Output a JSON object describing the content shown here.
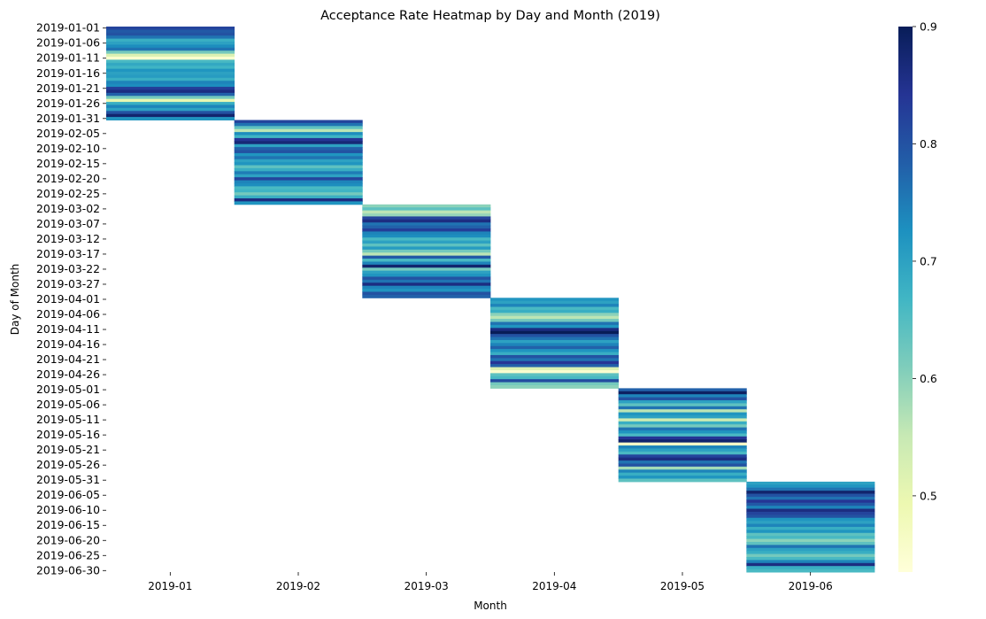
{
  "chart_data": {
    "type": "heatmap",
    "title": "Acceptance Rate Heatmap by Day and Month (2019)",
    "xlabel": "Month",
    "ylabel": "Day of Month",
    "months": [
      "2019-01",
      "2019-02",
      "2019-03",
      "2019-04",
      "2019-05",
      "2019-06"
    ],
    "days_per_month": [
      31,
      28,
      31,
      30,
      31,
      30
    ],
    "y_tick_labels": [
      "2019-01-01",
      "2019-01-06",
      "2019-01-11",
      "2019-01-16",
      "2019-01-21",
      "2019-01-26",
      "2019-01-31",
      "2019-02-05",
      "2019-02-10",
      "2019-02-15",
      "2019-02-20",
      "2019-02-25",
      "2019-03-02",
      "2019-03-07",
      "2019-03-12",
      "2019-03-17",
      "2019-03-22",
      "2019-03-27",
      "2019-04-01",
      "2019-04-06",
      "2019-04-11",
      "2019-04-16",
      "2019-04-21",
      "2019-04-26",
      "2019-05-01",
      "2019-05-06",
      "2019-05-11",
      "2019-05-16",
      "2019-05-21",
      "2019-05-26",
      "2019-05-31",
      "2019-06-05",
      "2019-06-10",
      "2019-06-15",
      "2019-06-20",
      "2019-06-25",
      "2019-06-30"
    ],
    "y_tick_every": 5,
    "colorbar": {
      "min": 0.435,
      "max": 0.9,
      "ticks": [
        "0.5",
        "0.6",
        "0.7",
        "0.8",
        "0.9"
      ],
      "colormap": "YlGnBu"
    },
    "values": [
      [
        0.82,
        0.79,
        0.8,
        0.76,
        0.68,
        0.7,
        0.73,
        0.76,
        0.62,
        0.52,
        0.45,
        0.66,
        0.69,
        0.67,
        0.72,
        0.7,
        0.71,
        0.68,
        0.74,
        0.73,
        0.83,
        0.86,
        0.78,
        0.62,
        0.5,
        0.68,
        0.74,
        0.7,
        0.8,
        0.88,
        0.72
      ],
      [
        0.82,
        0.76,
        0.64,
        0.56,
        0.73,
        0.67,
        0.84,
        0.87,
        0.7,
        0.78,
        0.8,
        0.72,
        0.76,
        0.7,
        0.72,
        0.64,
        0.68,
        0.75,
        0.7,
        0.82,
        0.74,
        0.73,
        0.66,
        0.67,
        0.62,
        0.68,
        0.86,
        0.72
      ],
      [
        0.6,
        0.64,
        0.56,
        0.59,
        0.82,
        0.86,
        0.76,
        0.78,
        0.83,
        0.74,
        0.73,
        0.66,
        0.7,
        0.64,
        0.71,
        0.62,
        0.56,
        0.79,
        0.66,
        0.74,
        0.88,
        0.62,
        0.7,
        0.72,
        0.8,
        0.76,
        0.86,
        0.74,
        0.72,
        0.8,
        0.78
      ],
      [
        0.72,
        0.7,
        0.74,
        0.66,
        0.68,
        0.6,
        0.56,
        0.62,
        0.76,
        0.72,
        0.86,
        0.9,
        0.8,
        0.76,
        0.7,
        0.74,
        0.78,
        0.72,
        0.68,
        0.8,
        0.76,
        0.84,
        0.78,
        0.52,
        0.45,
        0.64,
        0.66,
        0.81,
        0.62,
        0.6
      ],
      [
        0.78,
        0.89,
        0.74,
        0.8,
        0.7,
        0.64,
        0.76,
        0.56,
        0.72,
        0.7,
        0.54,
        0.68,
        0.62,
        0.76,
        0.72,
        0.66,
        0.84,
        0.88,
        0.46,
        0.74,
        0.7,
        0.66,
        0.82,
        0.86,
        0.76,
        0.8,
        0.58,
        0.74,
        0.68,
        0.72,
        0.64
      ],
      [
        0.7,
        0.72,
        0.76,
        0.88,
        0.8,
        0.76,
        0.84,
        0.79,
        0.74,
        0.86,
        0.82,
        0.8,
        0.72,
        0.7,
        0.74,
        0.68,
        0.72,
        0.64,
        0.66,
        0.6,
        0.64,
        0.76,
        0.7,
        0.68,
        0.62,
        0.66,
        0.74,
        0.86,
        0.68,
        0.66
      ]
    ]
  }
}
